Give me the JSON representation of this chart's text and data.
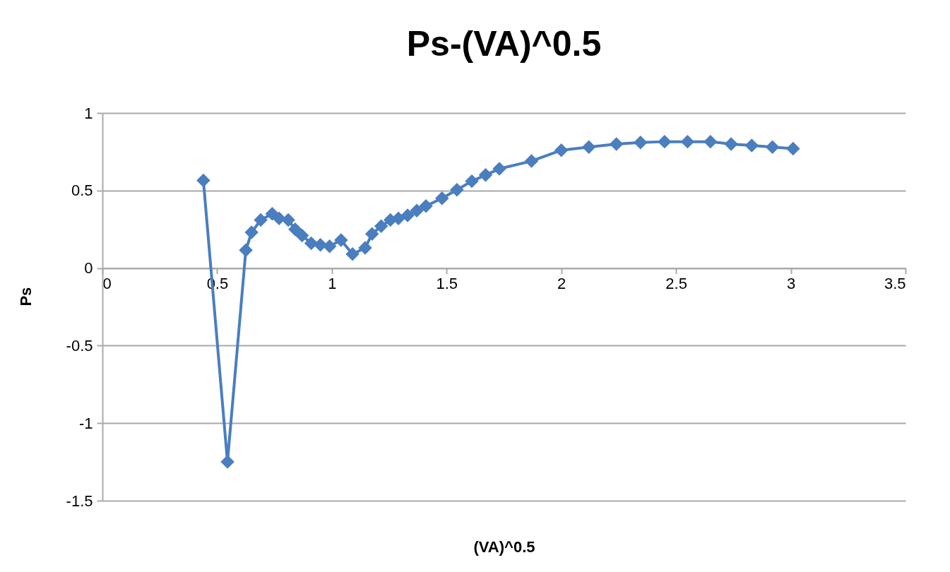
{
  "chart_data": {
    "type": "line",
    "title": "Ps-(VA)^0.5",
    "xlabel": "(VA)^0.5",
    "ylabel": "Ps",
    "x": [
      0.44,
      0.545,
      0.625,
      0.65,
      0.69,
      0.74,
      0.77,
      0.81,
      0.84,
      0.87,
      0.91,
      0.95,
      0.99,
      1.04,
      1.09,
      1.145,
      1.175,
      1.215,
      1.255,
      1.29,
      1.33,
      1.37,
      1.41,
      1.48,
      1.545,
      1.61,
      1.67,
      1.73,
      1.87,
      2.0,
      2.12,
      2.24,
      2.345,
      2.45,
      2.55,
      2.65,
      2.74,
      2.83,
      2.92,
      3.01
    ],
    "series": [
      {
        "color": "#4a7ebf",
        "values": [
          0.565,
          -1.25,
          0.115,
          0.23,
          0.31,
          0.35,
          0.32,
          0.31,
          0.25,
          0.21,
          0.16,
          0.15,
          0.14,
          0.18,
          0.09,
          0.13,
          0.22,
          0.27,
          0.31,
          0.32,
          0.34,
          0.37,
          0.4,
          0.45,
          0.505,
          0.56,
          0.6,
          0.64,
          0.69,
          0.76,
          0.78,
          0.8,
          0.81,
          0.815,
          0.815,
          0.815,
          0.8,
          0.79,
          0.78,
          0.77
        ]
      }
    ],
    "xlim": [
      0,
      3.5
    ],
    "xticks": [
      0,
      0.5,
      1,
      1.5,
      2,
      2.5,
      3,
      3.5
    ],
    "ylim": [
      -1.5,
      1
    ],
    "yticks": [
      -1.5,
      -1,
      -0.5,
      0,
      0.5,
      1
    ],
    "grid": "y",
    "marker": "diamond",
    "line_style": "solid"
  }
}
